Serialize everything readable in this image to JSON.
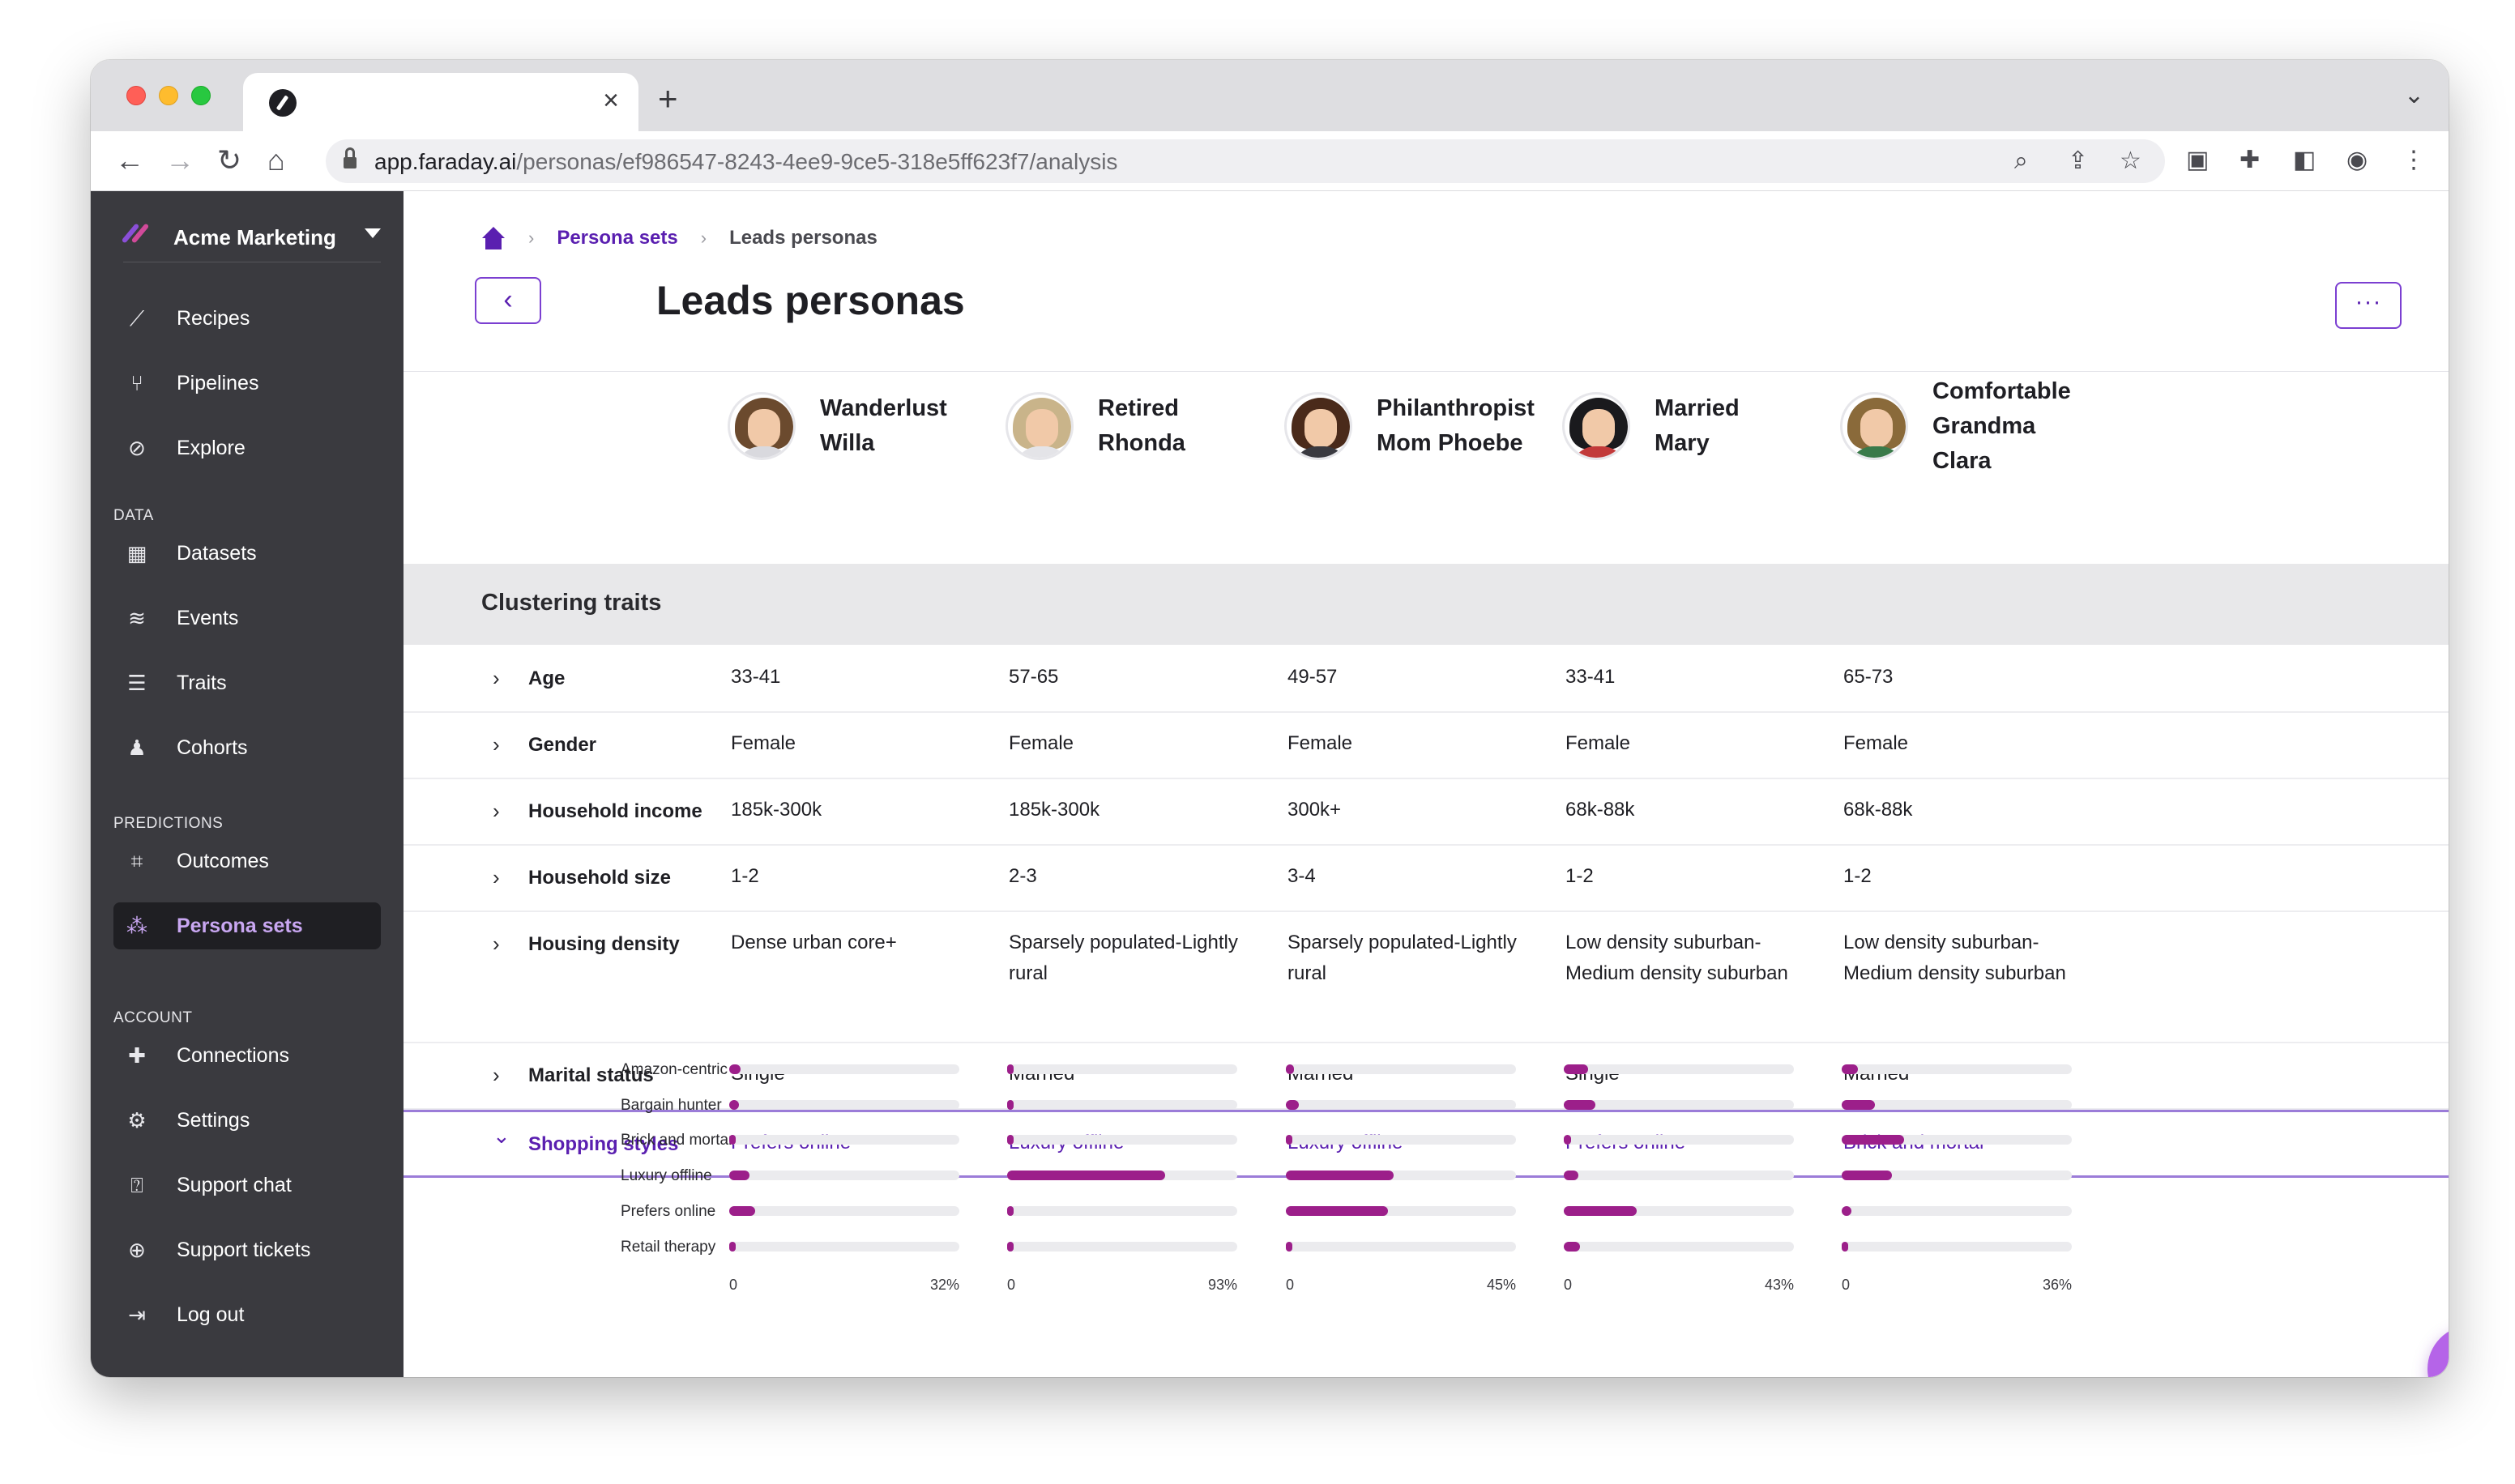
{
  "browser": {
    "url_host": "app.faraday.ai",
    "url_path": "/personas/ef986547-8243-4ee9-9ce5-318e5ff623f7/analysis",
    "tab_close": "×",
    "new_tab": "+"
  },
  "sidebar": {
    "org_name": "Acme Marketing",
    "primary": [
      {
        "label": "Recipes",
        "icon": "magic-wand-icon",
        "glyph": "⟋"
      },
      {
        "label": "Pipelines",
        "icon": "pipeline-icon",
        "glyph": "⑂"
      },
      {
        "label": "Explore",
        "icon": "compass-icon",
        "glyph": "⊘"
      }
    ],
    "data_section": "DATA",
    "data": [
      {
        "label": "Datasets",
        "icon": "grid-icon",
        "glyph": "▦"
      },
      {
        "label": "Events",
        "icon": "layers-icon",
        "glyph": "≋"
      },
      {
        "label": "Traits",
        "icon": "filter-icon",
        "glyph": "☰"
      },
      {
        "label": "Cohorts",
        "icon": "people-icon",
        "glyph": "♟"
      }
    ],
    "predictions_section": "PREDICTIONS",
    "predictions": [
      {
        "label": "Outcomes",
        "icon": "outcomes-icon",
        "glyph": "⌗"
      },
      {
        "label": "Persona sets",
        "icon": "persona-sets-icon",
        "glyph": "⁂",
        "active": true
      }
    ],
    "account_section": "ACCOUNT",
    "account": [
      {
        "label": "Connections",
        "icon": "puzzle-icon",
        "glyph": "✚"
      },
      {
        "label": "Settings",
        "icon": "gear-icon",
        "glyph": "⚙"
      },
      {
        "label": "Support chat",
        "icon": "chat-question-icon",
        "glyph": "⍰"
      },
      {
        "label": "Support tickets",
        "icon": "lifebuoy-icon",
        "glyph": "⊕"
      },
      {
        "label": "Log out",
        "icon": "logout-icon",
        "glyph": "⇥"
      }
    ]
  },
  "breadcrumb": {
    "parent": "Persona sets",
    "current": "Leads personas",
    "separator": "›"
  },
  "page": {
    "title": "Leads personas",
    "back_glyph": "‹",
    "more_glyph": "···"
  },
  "personas": [
    {
      "name_lines": [
        "Wanderlust",
        "Willa"
      ],
      "hair": "#6b4a2e",
      "shirt": "#d9d9de"
    },
    {
      "name_lines": [
        "Retired",
        "Rhonda"
      ],
      "hair": "#c9b48a",
      "shirt": "#e4e4e8"
    },
    {
      "name_lines": [
        "Philanthropist",
        "Mom Phoebe"
      ],
      "hair": "#4a2a1a",
      "shirt": "#3a3a40"
    },
    {
      "name_lines": [
        "Married",
        "Mary"
      ],
      "hair": "#1a1a1d",
      "shirt": "#c23a3a"
    },
    {
      "name_lines": [
        "Comfortable",
        "Grandma",
        "Clara"
      ],
      "hair": "#8a6a3a",
      "shirt": "#3a7a4a"
    }
  ],
  "section": {
    "title": "Clustering traits"
  },
  "traits": [
    {
      "label": "Age",
      "values": [
        "33-41",
        "57-65",
        "49-57",
        "33-41",
        "65-73"
      ]
    },
    {
      "label": "Gender",
      "values": [
        "Female",
        "Female",
        "Female",
        "Female",
        "Female"
      ]
    },
    {
      "label": "Household income",
      "values": [
        "185k-300k",
        "185k-300k",
        "300k+",
        "68k-88k",
        "68k-88k"
      ]
    },
    {
      "label": "Household size",
      "values": [
        "1-2",
        "2-3",
        "3-4",
        "1-2",
        "1-2"
      ]
    },
    {
      "label": "Housing density",
      "values": [
        "Dense urban core+",
        "Sparsely populated-Lightly rural",
        "Sparsely populated-Lightly rural",
        "Low density suburban-Medium density suburban",
        "Low density suburban-Medium density suburban"
      ]
    },
    {
      "label": "Marital status",
      "values": [
        "Single",
        "Married",
        "Married",
        "Single",
        "Married"
      ]
    },
    {
      "label": "Shopping styles",
      "values": [
        "Prefers online",
        "Luxury offline",
        "Luxury offline",
        "Prefers online",
        "Brick and mortar"
      ],
      "expanded": true
    }
  ],
  "chart_data": {
    "type": "bar",
    "title": "Shopping styles",
    "categories": [
      "Amazon-centric",
      "Bargain hunter",
      "Brick and mortar",
      "Luxury offline",
      "Prefers online",
      "Retail therapy"
    ],
    "series": [
      {
        "name": "Wanderlust Willa",
        "axis_max": 32,
        "axis_max_label": "32%",
        "values": [
          1.6,
          1.3,
          0.8,
          2.8,
          3.6,
          0.6
        ]
      },
      {
        "name": "Retired Rhonda",
        "axis_max": 93,
        "axis_max_label": "93%",
        "values": [
          1.8,
          1.2,
          1.1,
          64,
          1.8,
          0.9
        ]
      },
      {
        "name": "Philanthropist Mom Phoebe",
        "axis_max": 45,
        "axis_max_label": "45%",
        "values": [
          1.6,
          2.6,
          0.7,
          21,
          20,
          0.6
        ]
      },
      {
        "name": "Married Mary",
        "axis_max": 43,
        "axis_max_label": "43%",
        "values": [
          4.6,
          5.9,
          1.4,
          2.8,
          13.6,
          3.1
        ]
      },
      {
        "name": "Comfortable Grandma Clara",
        "axis_max": 36,
        "axis_max_label": "36%",
        "values": [
          2.5,
          5.2,
          9.8,
          7.9,
          1.5,
          0.9
        ]
      }
    ],
    "axis_min_label": "0"
  }
}
